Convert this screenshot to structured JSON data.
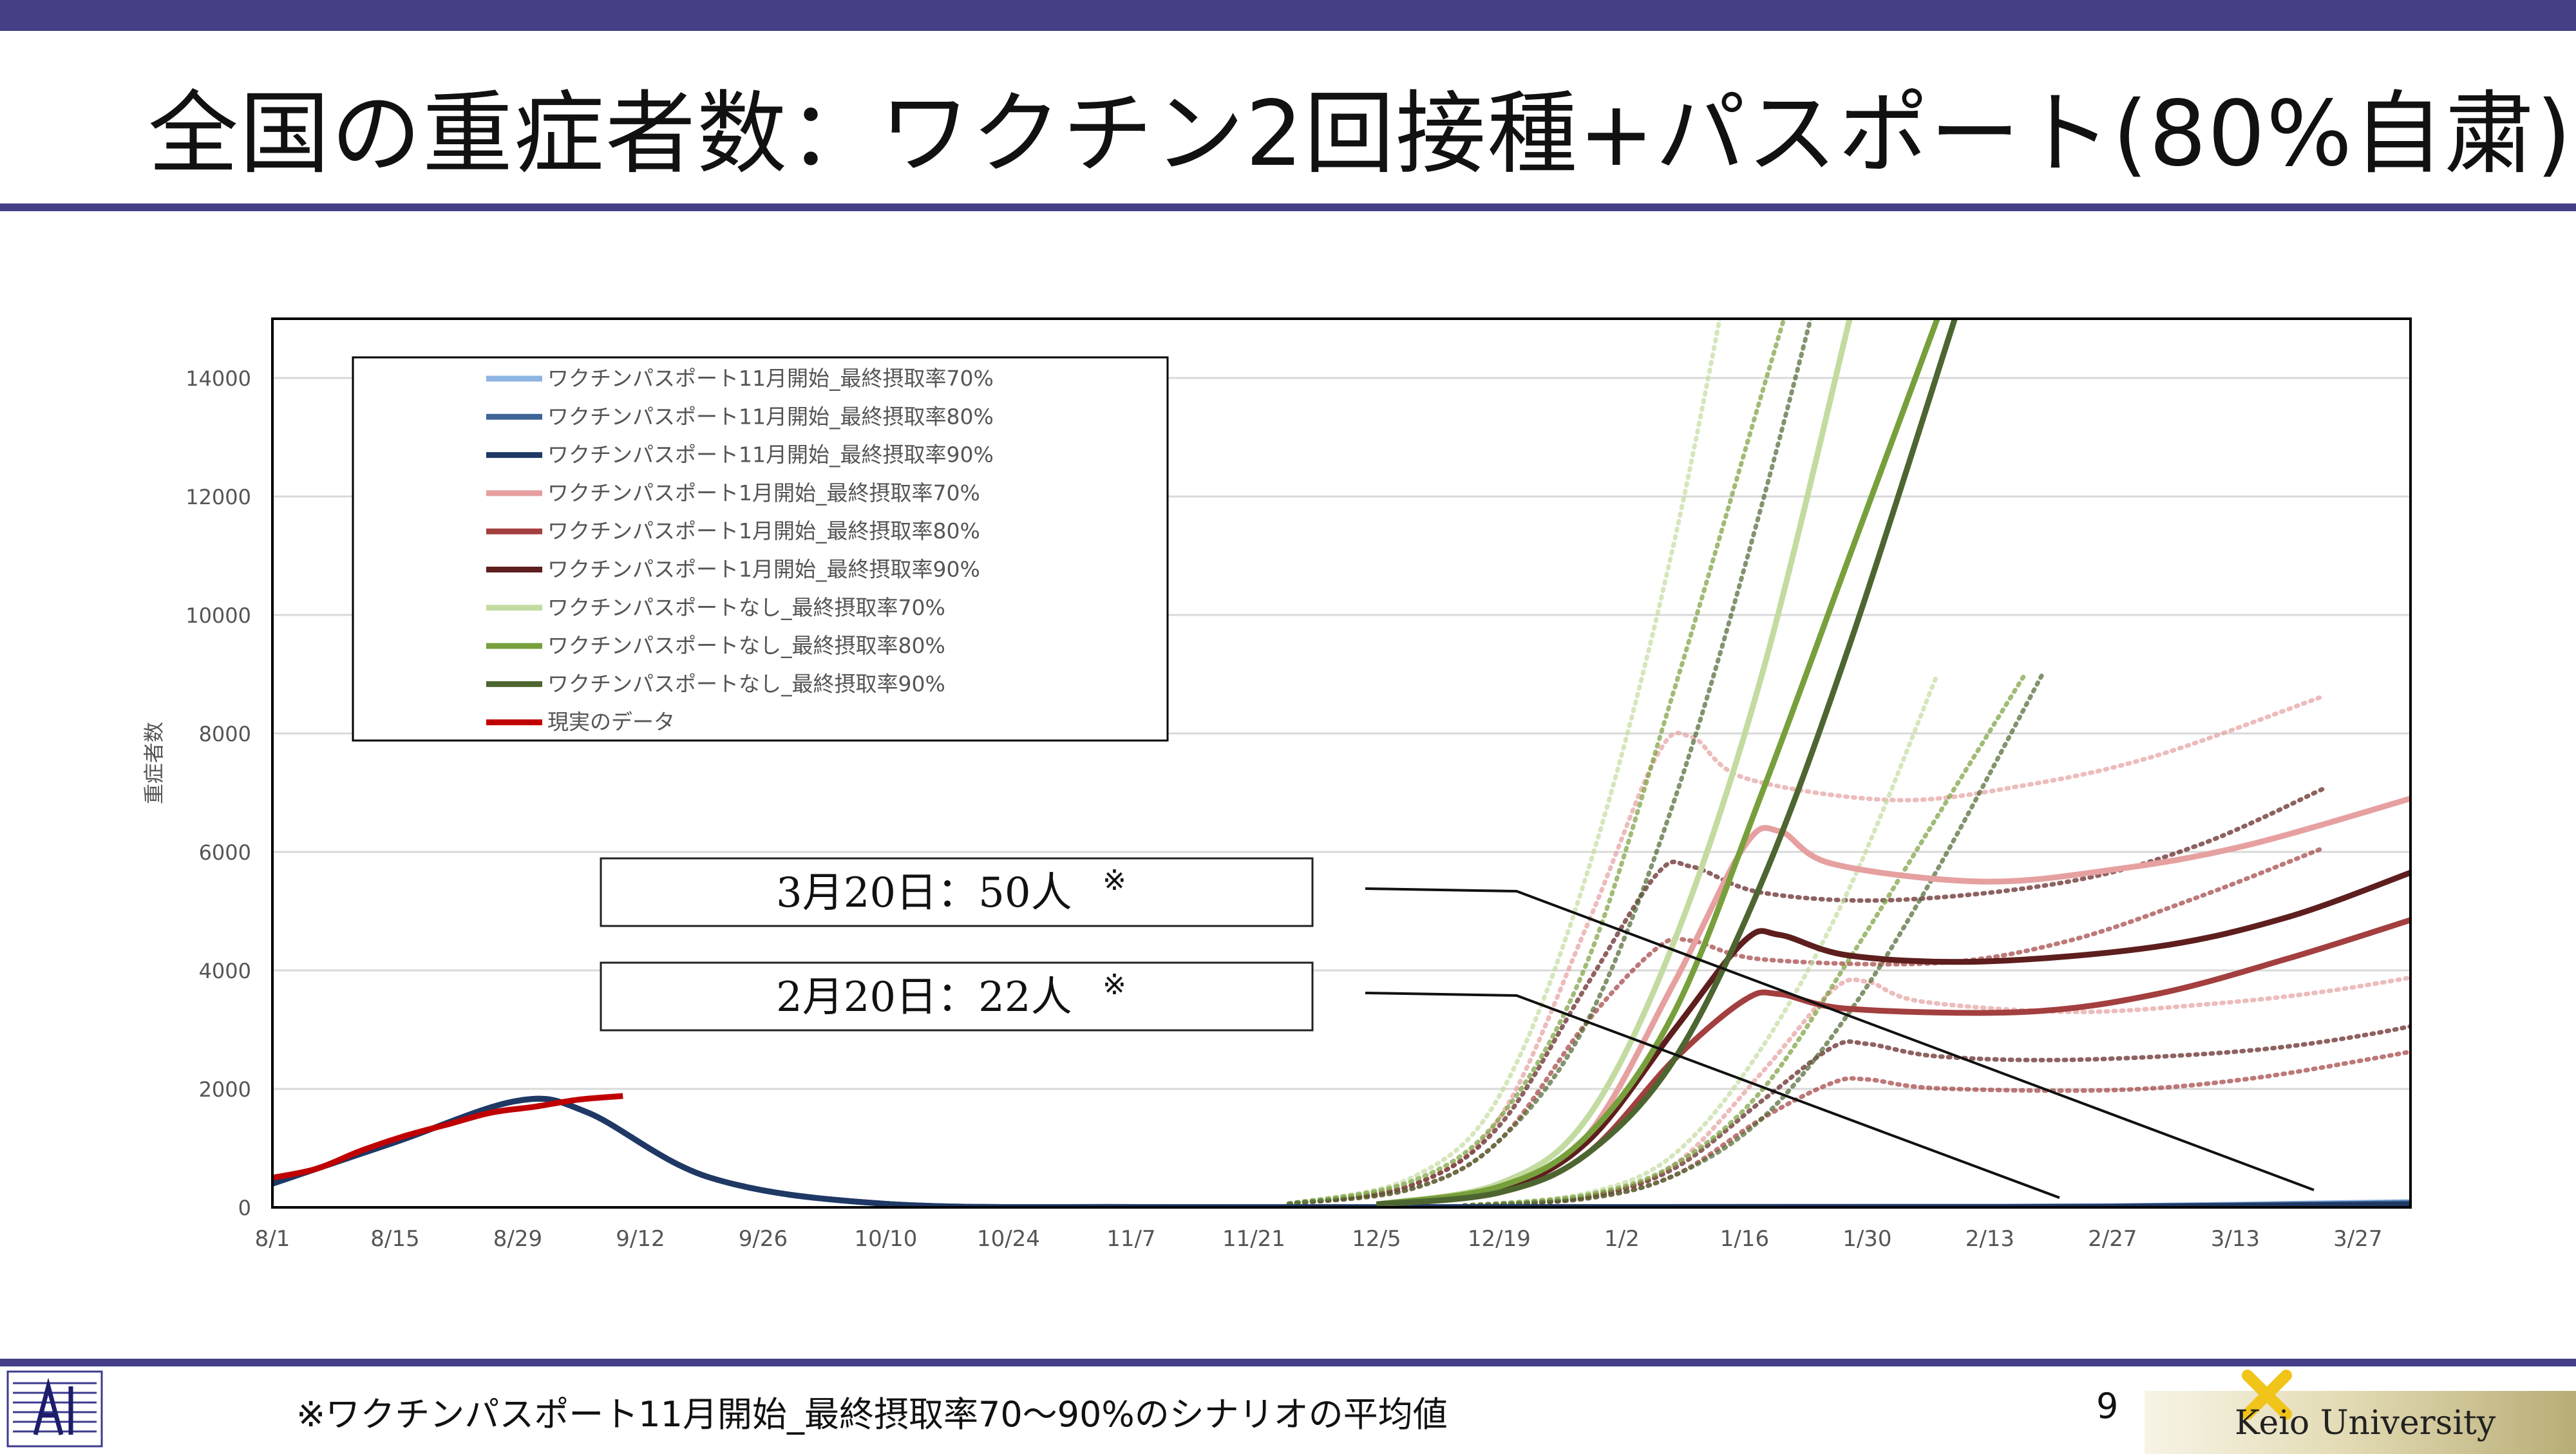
{
  "slide": {
    "title": "全国の重症者数：ワクチン2回接種+パスポート(80%自粛)",
    "footnote": "※ワクチンパスポート11月開始_最終摂取率70〜90%のシナリオの平均値",
    "page_number": "9",
    "brand": "Keio University",
    "colors": {
      "bar": "#443f86"
    }
  },
  "chart_data": {
    "type": "line",
    "ylabel": "重症者数",
    "ylim": [
      0,
      15000
    ],
    "yticks": [
      0,
      2000,
      4000,
      6000,
      8000,
      10000,
      12000,
      14000
    ],
    "xlim": [
      0,
      244
    ],
    "xticks": [
      {
        "day": 0,
        "label": "8/1"
      },
      {
        "day": 14,
        "label": "8/15"
      },
      {
        "day": 28,
        "label": "8/29"
      },
      {
        "day": 42,
        "label": "9/12"
      },
      {
        "day": 56,
        "label": "9/26"
      },
      {
        "day": 70,
        "label": "10/10"
      },
      {
        "day": 84,
        "label": "10/24"
      },
      {
        "day": 98,
        "label": "11/7"
      },
      {
        "day": 112,
        "label": "11/21"
      },
      {
        "day": 126,
        "label": "12/5"
      },
      {
        "day": 140,
        "label": "12/19"
      },
      {
        "day": 154,
        "label": "1/2"
      },
      {
        "day": 168,
        "label": "1/16"
      },
      {
        "day": 182,
        "label": "1/30"
      },
      {
        "day": 196,
        "label": "2/13"
      },
      {
        "day": 210,
        "label": "2/27"
      },
      {
        "day": 224,
        "label": "3/13"
      },
      {
        "day": 238,
        "label": "3/27"
      }
    ],
    "series": [
      {
        "name": "ワクチンパスポート11月開始_最終摂取率70%",
        "color": "#8eb4e3",
        "points": [
          [
            0,
            400
          ],
          [
            14,
            1100
          ],
          [
            28,
            1800
          ],
          [
            36,
            1600
          ],
          [
            50,
            500
          ],
          [
            70,
            60
          ],
          [
            100,
            5
          ],
          [
            140,
            5
          ],
          [
            180,
            10
          ],
          [
            210,
            20
          ],
          [
            244,
            90
          ]
        ]
      },
      {
        "name": "ワクチンパスポート11月開始_最終摂取率80%",
        "color": "#3f6497",
        "points": [
          [
            0,
            400
          ],
          [
            14,
            1100
          ],
          [
            28,
            1800
          ],
          [
            36,
            1600
          ],
          [
            50,
            500
          ],
          [
            70,
            60
          ],
          [
            100,
            5
          ],
          [
            140,
            5
          ],
          [
            180,
            8
          ],
          [
            210,
            15
          ],
          [
            244,
            70
          ]
        ]
      },
      {
        "name": "ワクチンパスポート11月開始_最終摂取率90%",
        "color": "#1f3864",
        "points": [
          [
            0,
            400
          ],
          [
            14,
            1100
          ],
          [
            28,
            1800
          ],
          [
            36,
            1600
          ],
          [
            50,
            500
          ],
          [
            70,
            60
          ],
          [
            100,
            5
          ],
          [
            140,
            5
          ],
          [
            180,
            5
          ],
          [
            210,
            10
          ],
          [
            244,
            50
          ]
        ]
      },
      {
        "name": "ワクチンパスポート1月開始_最終摂取率70%",
        "color": "#e6a0a0",
        "points": [
          [
            126,
            50
          ],
          [
            140,
            300
          ],
          [
            150,
            1200
          ],
          [
            160,
            3800
          ],
          [
            168,
            6100
          ],
          [
            172,
            6350
          ],
          [
            178,
            5800
          ],
          [
            195,
            5500
          ],
          [
            210,
            5700
          ],
          [
            225,
            6100
          ],
          [
            244,
            6900
          ]
        ]
      },
      {
        "name": "ワクチンパスポート1月開始_最終摂取率80%",
        "color": "#a33f3f",
        "points": [
          [
            126,
            50
          ],
          [
            140,
            250
          ],
          [
            150,
            900
          ],
          [
            160,
            2500
          ],
          [
            168,
            3500
          ],
          [
            172,
            3600
          ],
          [
            180,
            3350
          ],
          [
            200,
            3300
          ],
          [
            215,
            3600
          ],
          [
            230,
            4200
          ],
          [
            244,
            4850
          ]
        ]
      },
      {
        "name": "ワクチンパスポート1月開始_最終摂取率90%",
        "color": "#5e1e1e",
        "points": [
          [
            126,
            50
          ],
          [
            140,
            300
          ],
          [
            150,
            1100
          ],
          [
            160,
            3000
          ],
          [
            168,
            4500
          ],
          [
            172,
            4600
          ],
          [
            180,
            4250
          ],
          [
            195,
            4150
          ],
          [
            215,
            4400
          ],
          [
            230,
            4900
          ],
          [
            244,
            5650
          ]
        ]
      },
      {
        "name": "ワクチンパスポートなし_最終摂取率70%",
        "color": "#c3dba0",
        "points": [
          [
            126,
            50
          ],
          [
            140,
            400
          ],
          [
            150,
            1500
          ],
          [
            160,
            4500
          ],
          [
            170,
            9000
          ],
          [
            180,
            15000
          ]
        ]
      },
      {
        "name": "ワクチンパスポートなし_最終摂取率80%",
        "color": "#77a03c",
        "points": [
          [
            126,
            50
          ],
          [
            140,
            350
          ],
          [
            150,
            1200
          ],
          [
            160,
            3300
          ],
          [
            170,
            7000
          ],
          [
            180,
            11000
          ],
          [
            190,
            15000
          ]
        ]
      },
      {
        "name": "ワクチンパスポートなし_最終摂取率90%",
        "color": "#4d6631",
        "points": [
          [
            126,
            50
          ],
          [
            140,
            250
          ],
          [
            150,
            900
          ],
          [
            160,
            2500
          ],
          [
            170,
            5500
          ],
          [
            180,
            9500
          ],
          [
            192,
            15000
          ]
        ]
      },
      {
        "name": "現実のデータ",
        "color": "#c00000",
        "points": [
          [
            0,
            500
          ],
          [
            5,
            650
          ],
          [
            10,
            950
          ],
          [
            15,
            1200
          ],
          [
            20,
            1400
          ],
          [
            25,
            1600
          ],
          [
            30,
            1700
          ],
          [
            35,
            1820
          ],
          [
            40,
            1880
          ]
        ]
      }
    ],
    "legend": "top-left",
    "annotations": [
      {
        "text": "3月20日：50人",
        "mark": "※"
      },
      {
        "text": "2月20日：22人",
        "mark": "※"
      }
    ]
  }
}
